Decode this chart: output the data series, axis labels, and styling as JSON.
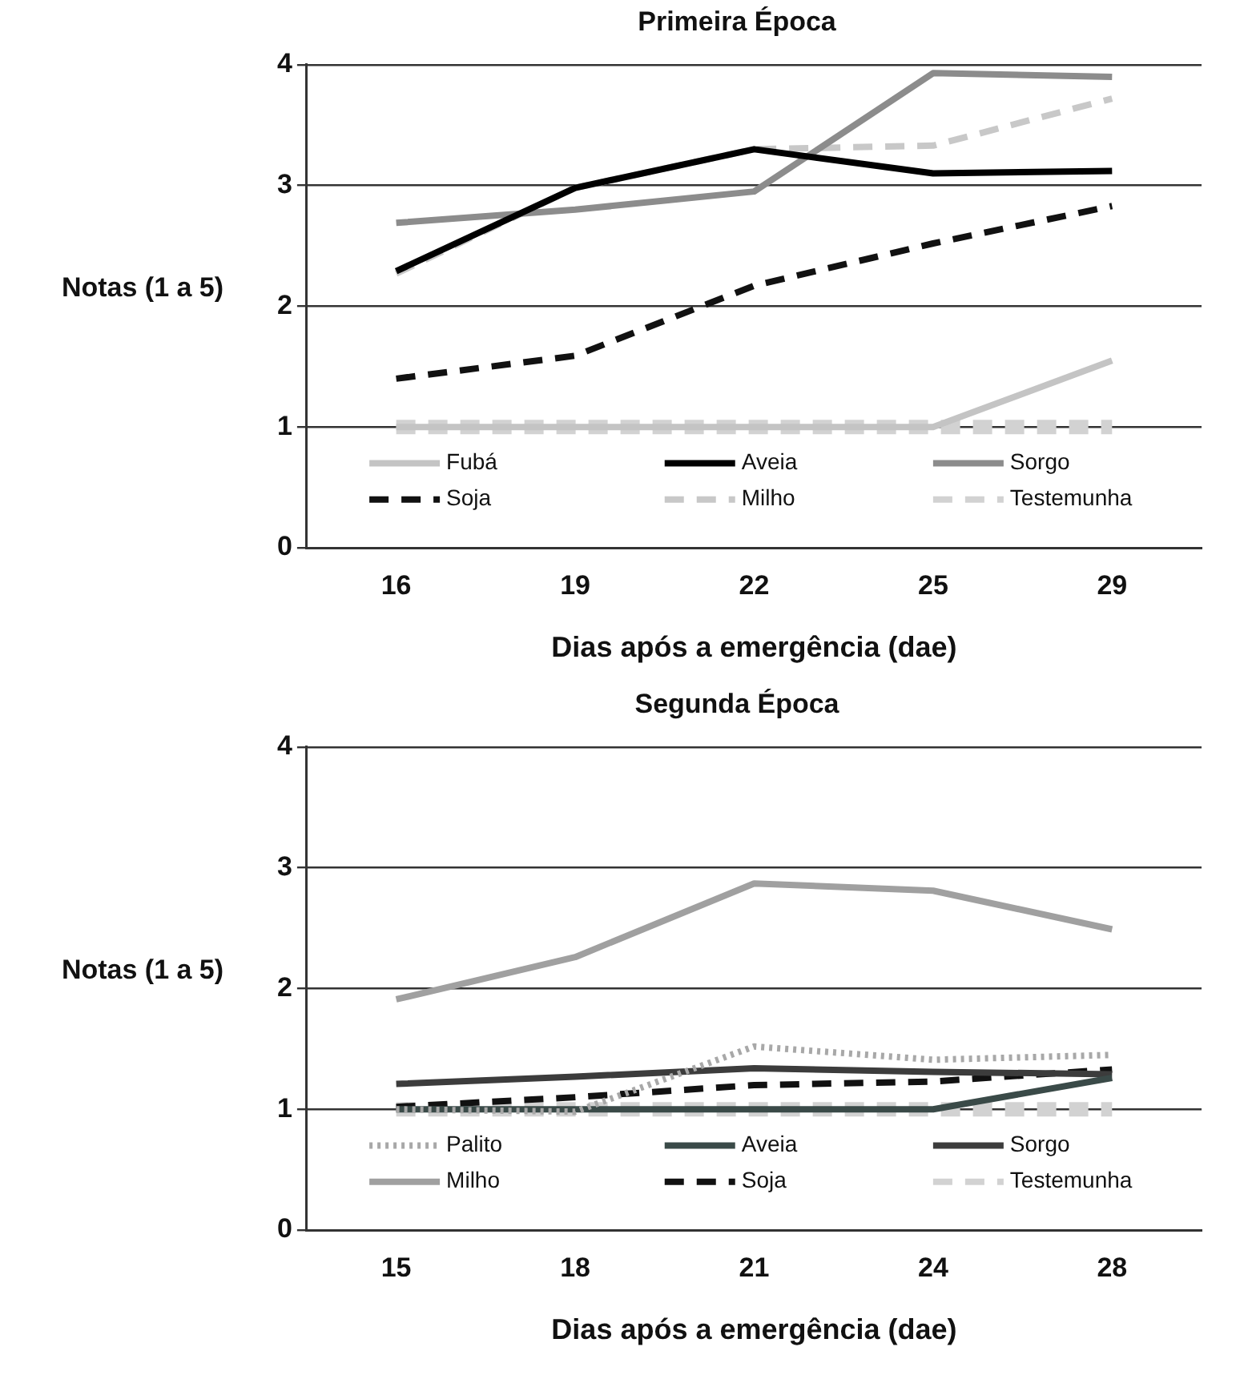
{
  "chart_data": [
    {
      "type": "line",
      "title": "Primeira Época",
      "xlabel": "Dias após a emergência (dae)",
      "ylabel": "Notas (1 a 5)",
      "categories": [
        "16",
        "19",
        "22",
        "25",
        "29"
      ],
      "ylim": [
        0,
        4
      ],
      "yticks": [
        0,
        1,
        2,
        3,
        4
      ],
      "grid": "y",
      "legend": "bottom",
      "marker": "none",
      "series": [
        {
          "name": "Fubá",
          "color": "#c4c4c4",
          "line_style": "solid",
          "values": [
            1,
            1,
            1,
            1,
            1.55
          ]
        },
        {
          "name": "Aveia",
          "color": "#000000",
          "line_style": "solid",
          "values": [
            2.29,
            2.98,
            3.3,
            3.1,
            3.12
          ]
        },
        {
          "name": "Sorgo",
          "color": "#8c8c8c",
          "line_style": "solid",
          "values": [
            2.69,
            2.8,
            2.95,
            3.93,
            3.9
          ]
        },
        {
          "name": "Soja",
          "color": "#111111",
          "line_style": "dashed",
          "values": [
            1.4,
            1.59,
            2.17,
            2.52,
            2.83
          ]
        },
        {
          "name": "Milho",
          "color": "#c8c8c8",
          "line_style": "dashed",
          "values": [
            2.27,
            2.98,
            3.3,
            3.33,
            3.72
          ]
        },
        {
          "name": "Testemunha",
          "color": "#d2d2d2",
          "line_style": "dashed",
          "values": [
            1,
            1,
            1,
            1,
            1
          ]
        }
      ]
    },
    {
      "type": "line",
      "title": "Segunda Época",
      "xlabel": "Dias após a emergência (dae)",
      "ylabel": "Notas (1 a 5)",
      "categories": [
        "15",
        "18",
        "21",
        "24",
        "28"
      ],
      "ylim": [
        0,
        4
      ],
      "yticks": [
        0,
        1,
        2,
        3,
        4
      ],
      "grid": "y",
      "legend": "bottom",
      "marker": "none",
      "series": [
        {
          "name": "Palito",
          "color": "#a8a8a8",
          "line_style": "dotted",
          "values": [
            1,
            0.98,
            1.52,
            1.41,
            1.45
          ]
        },
        {
          "name": "Aveia",
          "color": "#3a4a48",
          "line_style": "solid",
          "values": [
            1,
            1,
            1,
            1,
            1.26
          ]
        },
        {
          "name": "Sorgo",
          "color": "#3c3c3c",
          "line_style": "solid",
          "values": [
            1.21,
            1.27,
            1.34,
            1.31,
            1.29
          ]
        },
        {
          "name": "Milho",
          "color": "#a0a0a0",
          "line_style": "solid",
          "values": [
            1.91,
            2.26,
            2.87,
            2.81,
            2.49
          ]
        },
        {
          "name": "Soja",
          "color": "#111111",
          "line_style": "dashed",
          "values": [
            1.02,
            1.1,
            1.2,
            1.23,
            1.33
          ]
        },
        {
          "name": "Testemunha",
          "color": "#d2d2d2",
          "line_style": "dashed",
          "values": [
            1,
            1,
            1,
            1,
            1
          ]
        }
      ]
    }
  ]
}
